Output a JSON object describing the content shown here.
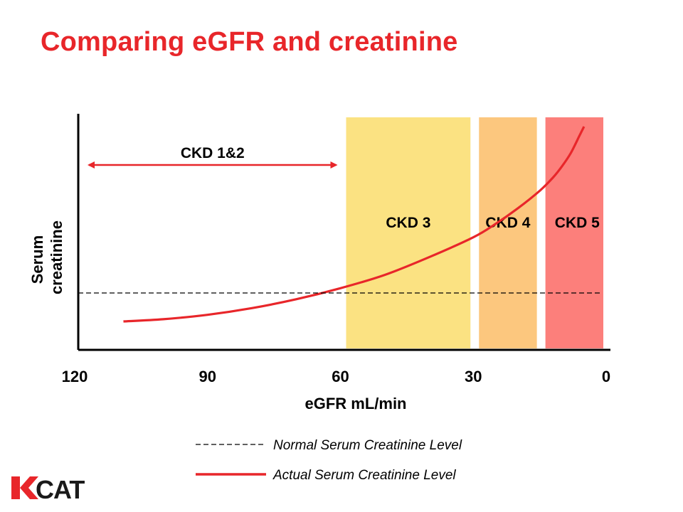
{
  "title": "Comparing eGFR and creatinine",
  "colors": {
    "title": "#e8262a",
    "curve": "#e8262a",
    "arrow": "#e8262a",
    "ckd3": "#fbe282",
    "ckd4": "#fcc77e",
    "ckd5": "#fc7f7b"
  },
  "chart_data": {
    "type": "line",
    "title": "Comparing eGFR and creatinine",
    "xlabel": "eGFR mL/min",
    "ylabel": "Serum creatinine",
    "x_ticks": [
      "120",
      "90",
      "60",
      "30",
      "0"
    ],
    "xlim": [
      120,
      0
    ],
    "x_reversed": true,
    "bands": [
      {
        "label": "CKD 3",
        "from": 60,
        "to": 30,
        "color": "#fbe282"
      },
      {
        "label": "CKD 4",
        "from": 30,
        "to": 15,
        "color": "#fcc77e"
      },
      {
        "label": "CKD 5",
        "from": 15,
        "to": 0,
        "color": "#fc7f7b"
      }
    ],
    "range_annotations": [
      {
        "label": "CKD 1&2",
        "from": 120,
        "to": 60
      }
    ],
    "series": [
      {
        "name": "Actual Serum Creatinine Level",
        "style": "solid",
        "x": [
          109,
          100,
          90,
          80,
          70,
          60,
          50,
          40,
          30,
          25,
          20,
          15,
          12,
          10,
          8,
          6,
          5
        ],
        "y": [
          0.12,
          0.13,
          0.15,
          0.18,
          0.22,
          0.27,
          0.33,
          0.41,
          0.5,
          0.56,
          0.63,
          0.71,
          0.77,
          0.82,
          0.88,
          0.96,
          1.0
        ]
      },
      {
        "name": "Normal Serum Creatinine Level",
        "style": "dashed",
        "x": [
          120,
          0
        ],
        "y": [
          0.25,
          0.25
        ]
      }
    ],
    "grid": false,
    "legend_position": "bottom-center"
  },
  "legend": {
    "normal": "Normal Serum Creatinine Level",
    "actual": "Actual Serum Creatinine Level"
  },
  "logo": {
    "text": "KCAT"
  }
}
